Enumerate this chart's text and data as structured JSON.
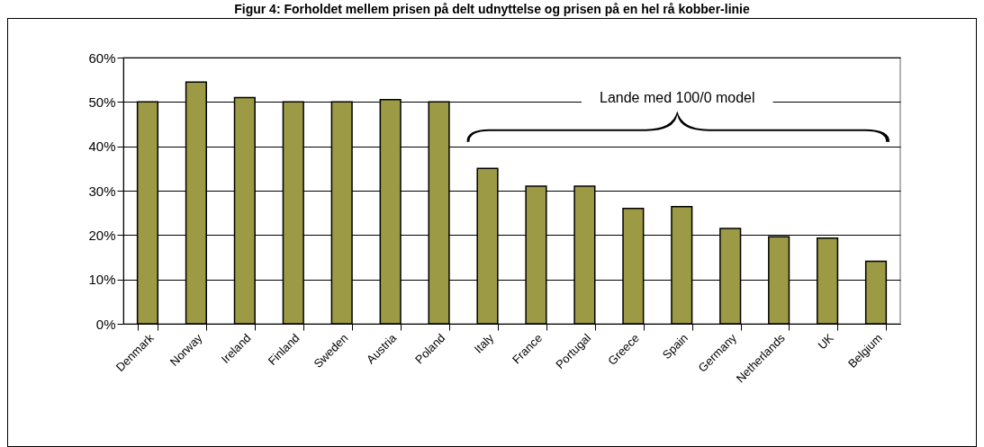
{
  "chart_data": {
    "type": "bar",
    "title": "Figur 4: Forholdet mellem prisen på delt udnyttelse og prisen på en hel rå kobber-linie",
    "categories": [
      "Denmark",
      "Norway",
      "Ireland",
      "Finland",
      "Sweden",
      "Austria",
      "Poland",
      "Italy",
      "France",
      "Portugal",
      "Greece",
      "Spain",
      "Germany",
      "Netherlands",
      "UK",
      "Belgium"
    ],
    "values": [
      50,
      54.5,
      51,
      50,
      50,
      50.5,
      50,
      35,
      31,
      31,
      26,
      26.4,
      21.5,
      19.6,
      19.3,
      14.1
    ],
    "color": "#9c9a45",
    "ylim": [
      0,
      60
    ],
    "yticks": [
      {
        "value": 0,
        "label": "0%"
      },
      {
        "value": 10,
        "label": "10%"
      },
      {
        "value": 20,
        "label": "20%"
      },
      {
        "value": 30,
        "label": "30%"
      },
      {
        "value": 40,
        "label": "40%"
      },
      {
        "value": 50,
        "label": "50%"
      },
      {
        "value": 60,
        "label": "60%"
      }
    ],
    "grid": "y",
    "annotations": [
      "Lande med 100/0 model"
    ]
  }
}
